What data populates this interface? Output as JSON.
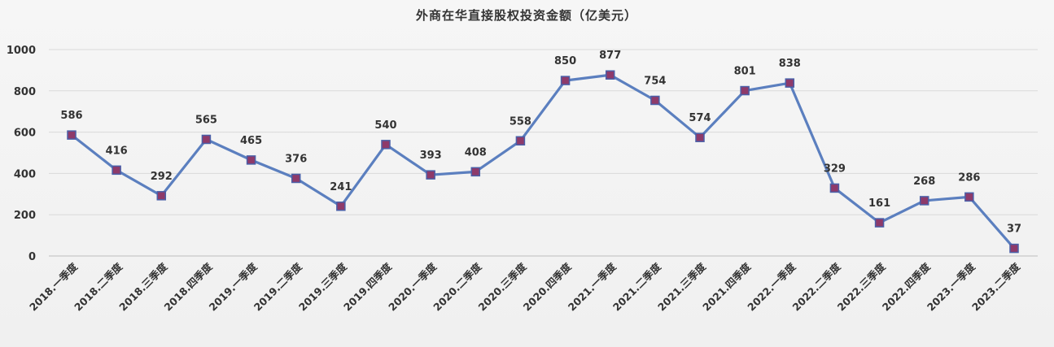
{
  "chart_data": {
    "type": "line",
    "title": "外商在华直接股权投资金额（亿美元）",
    "xlabel": "",
    "ylabel": "",
    "ylim": [
      0,
      1000
    ],
    "yticks": [
      0,
      200,
      400,
      600,
      800,
      1000
    ],
    "grid": true,
    "legend": "none",
    "categories": [
      "2018.一季度",
      "2018.二季度",
      "2018.三季度",
      "2018.四季度",
      "2019.一季度",
      "2019.二季度",
      "2019.三季度",
      "2019.四季度",
      "2020.一季度",
      "2020.二季度",
      "2020.三季度",
      "2020.四季度",
      "2021.一季度",
      "2021.二季度",
      "2021.三季度",
      "2021.四季度",
      "2022.一季度",
      "2022.二季度",
      "2022.三季度",
      "2022.四季度",
      "2023.一季度",
      "2023.二季度"
    ],
    "series": [
      {
        "values": [
          586,
          416,
          292,
          565,
          465,
          376,
          241,
          540,
          393,
          408,
          558,
          850,
          877,
          754,
          574,
          801,
          838,
          329,
          161,
          268,
          286,
          37
        ]
      }
    ],
    "colors": {
      "line": "#5b7fbf",
      "marker_fill": "#8e3a6a",
      "marker_edge": "#4a5fa8",
      "grid": "#d9d9d9"
    }
  }
}
